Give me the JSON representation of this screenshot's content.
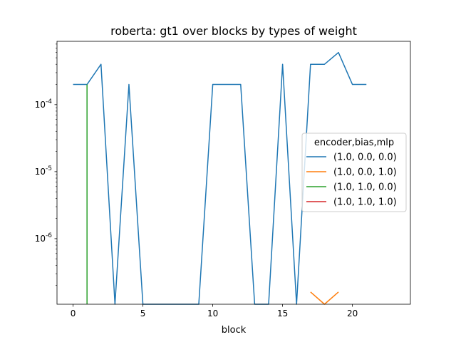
{
  "chart_data": {
    "type": "line",
    "title": "roberta: gt1 over blocks by types of weight",
    "xlabel": "block",
    "ylabel": "",
    "xlim": [
      -1.15,
      24.15
    ],
    "ylim": [
      1.05e-07,
      0.00088
    ],
    "yscale": "log",
    "grid": false,
    "xticks": [
      0,
      5,
      10,
      15,
      20
    ],
    "xtick_labels": [
      "0",
      "5",
      "10",
      "15",
      "20"
    ],
    "yticks": [
      1e-06,
      1e-05,
      0.0001
    ],
    "ytick_labels": [
      "10^{-6}",
      "10^{-5}",
      "10^{-4}"
    ],
    "legend": {
      "title": "encoder,bias,mlp",
      "placement": "center-right"
    },
    "series": [
      {
        "name": "(1.0, 0.0, 0.0)",
        "color": "#1f77b4",
        "x": [
          0,
          1,
          2,
          3,
          4,
          5,
          6,
          7,
          8,
          9,
          10,
          11,
          12,
          13,
          14,
          15,
          16,
          17,
          18,
          19,
          20,
          21
        ],
        "y": [
          0.0002,
          0.0002,
          0.0004,
          0,
          0.0002,
          0,
          0,
          0,
          0,
          0,
          0.0002,
          0.0002,
          0.0002,
          0,
          0,
          0.0004,
          0,
          0.0004,
          0.0004,
          0.0006,
          0.0002,
          0.0002
        ]
      },
      {
        "name": "(1.0, 0.0, 1.0)",
        "color": "#ff7f0e",
        "x": [
          17,
          18,
          19
        ],
        "y": [
          1.6e-07,
          0,
          1.6e-07
        ]
      },
      {
        "name": "(1.0, 1.0, 0.0)",
        "color": "#2ca02c",
        "x": [
          1
        ],
        "y": [
          0.0002
        ]
      },
      {
        "name": "(1.0, 1.0, 1.0)",
        "color": "#d62728",
        "x": [],
        "y": []
      }
    ]
  }
}
